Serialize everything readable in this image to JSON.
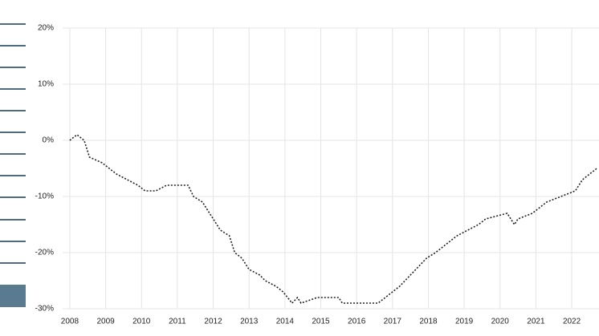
{
  "chart_data": {
    "type": "line",
    "x": [
      2008.0,
      2008.2,
      2008.4,
      2008.55,
      2008.9,
      2009.3,
      2009.6,
      2009.9,
      2010.1,
      2010.4,
      2010.7,
      2011.3,
      2011.45,
      2011.7,
      2011.9,
      2012.2,
      2012.45,
      2012.6,
      2012.8,
      2013.0,
      2013.3,
      2013.45,
      2013.75,
      2013.95,
      2014.2,
      2014.35,
      2014.45,
      2014.9,
      2015.5,
      2015.6,
      2016.6,
      2016.8,
      2017.0,
      2017.2,
      2017.5,
      2017.95,
      2018.2,
      2018.4,
      2018.6,
      2018.8,
      2019.1,
      2019.4,
      2019.6,
      2020.2,
      2020.4,
      2020.5,
      2020.9,
      2021.3,
      2021.7,
      2022.1,
      2022.3,
      2022.5,
      2022.7
    ],
    "series": [
      {
        "color": "#222222",
        "values": [
          0,
          1,
          0,
          -3,
          -4,
          -6,
          -7,
          -8,
          -9,
          -9,
          -8,
          -8,
          -10,
          -11,
          -13,
          -16,
          -17,
          -20,
          -21,
          -23,
          -24,
          -25,
          -26,
          -27,
          -29,
          -28,
          -29,
          -28,
          -28,
          -29,
          -29,
          -28,
          -27,
          -26,
          -24,
          -21,
          -20,
          -19,
          -18,
          -17,
          -16,
          -15,
          -14,
          -13,
          -15,
          -14,
          -13,
          -11,
          -10,
          -9,
          -7,
          -6,
          -5
        ]
      }
    ],
    "xlim": [
      2007.8,
      2022.76
    ],
    "xticks": [
      2008,
      2009,
      2010,
      2011,
      2012,
      2013,
      2014,
      2015,
      2016,
      2017,
      2018,
      2019,
      2020,
      2021,
      2022
    ],
    "ylim": [
      -30,
      20
    ],
    "yticks": [
      {
        "value": 20,
        "label": "20%"
      },
      {
        "value": 10,
        "label": "10%"
      },
      {
        "value": 0,
        "label": "0%"
      },
      {
        "value": -10,
        "label": "-10%"
      },
      {
        "value": -20,
        "label": "-20%"
      },
      {
        "value": -30,
        "label": "-30%"
      }
    ],
    "grid": true
  }
}
